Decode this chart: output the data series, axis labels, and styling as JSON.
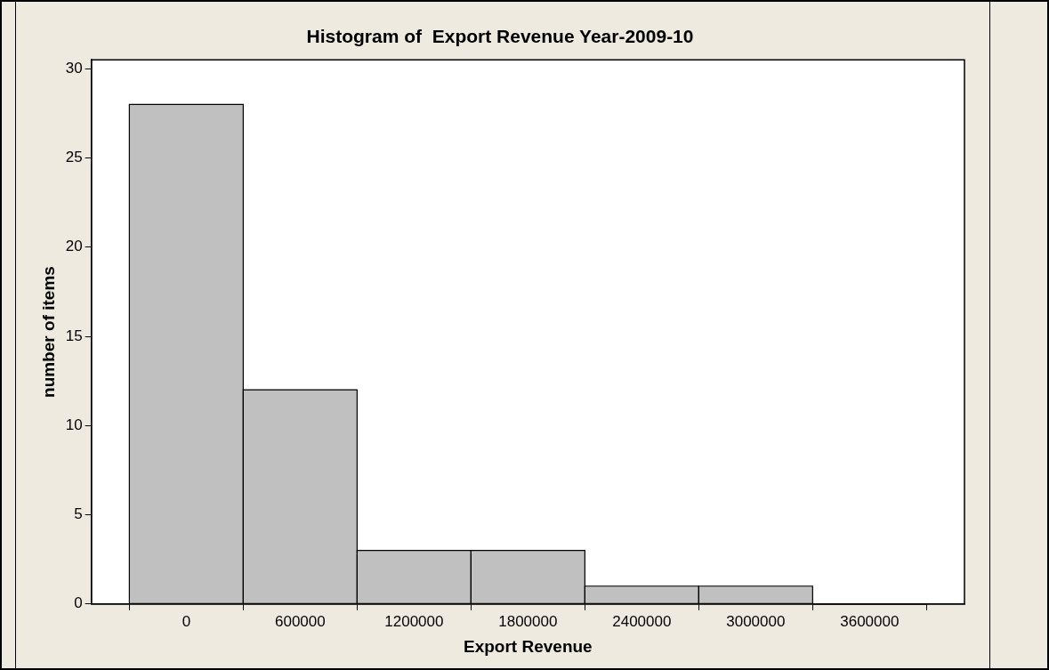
{
  "chart_data": {
    "type": "histogram",
    "title": "Histogram of  Export Revenue Year-2009-10",
    "xlabel": "Export Revenue",
    "ylabel": "number of items",
    "bins": [
      -300000,
      300000,
      900000,
      1500000,
      2100000,
      2700000,
      3300000,
      3900000
    ],
    "values": [
      28,
      12,
      3,
      3,
      1,
      1,
      0
    ],
    "color": "#c0c0c0",
    "xlim": [
      -500000,
      4100000
    ],
    "xticks": [
      0,
      600000,
      1200000,
      1800000,
      2400000,
      3000000,
      3600000
    ],
    "ylim": [
      0,
      30.5
    ],
    "yticks": [
      0,
      5,
      10,
      15,
      20,
      25,
      30
    ],
    "grid": false,
    "legend": false
  }
}
